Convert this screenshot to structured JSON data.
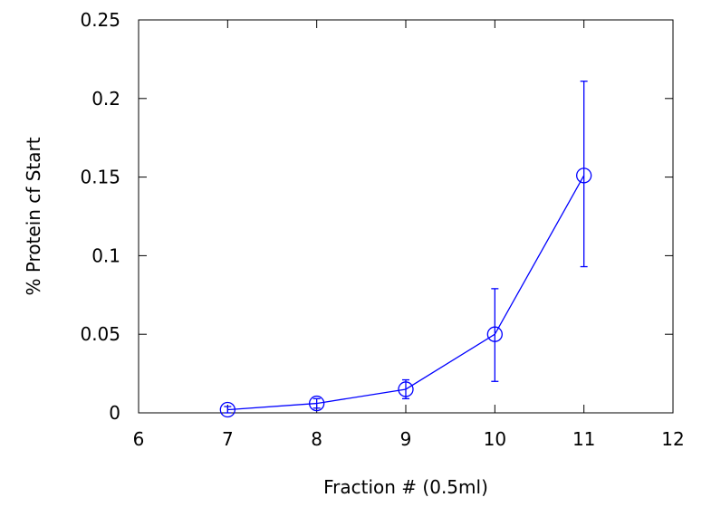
{
  "chart_data": {
    "type": "line",
    "title": "",
    "xlabel": "Fraction # (0.5ml)",
    "ylabel": "% Protein cf Start",
    "xlim": [
      6,
      12
    ],
    "ylim": [
      0,
      0.25
    ],
    "xticks": [
      "6",
      "7",
      "8",
      "9",
      "10",
      "11",
      "12"
    ],
    "yticks": [
      "0",
      "0.05",
      "0.1",
      "0.15",
      "0.2",
      "0.25"
    ],
    "grid": false,
    "legend": "none",
    "series": [
      {
        "color": "#0000ff",
        "marker": "circle",
        "x": [
          7,
          8,
          9,
          10,
          11
        ],
        "y": [
          0.002,
          0.006,
          0.015,
          0.05,
          0.151
        ],
        "yerr_low": [
          0.0,
          0.003,
          0.009,
          0.02,
          0.093
        ],
        "yerr_high": [
          0.004,
          0.009,
          0.021,
          0.079,
          0.211
        ]
      }
    ]
  }
}
